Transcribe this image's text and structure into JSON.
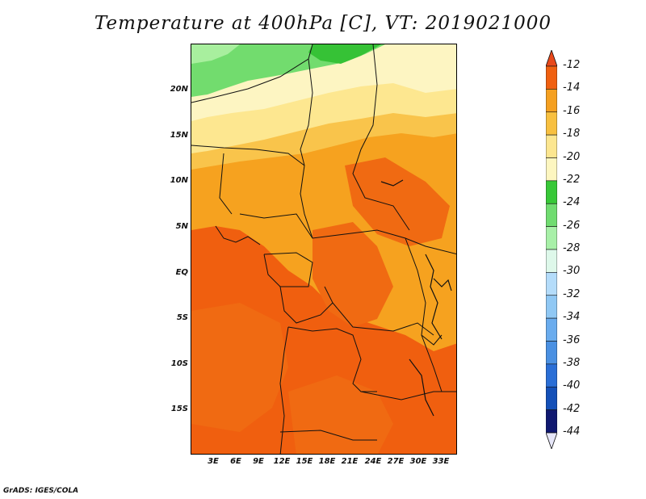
{
  "title": "Temperature at 400hPa [C], VT: 2019021000",
  "credit": "GrADS: IGES/COLA",
  "y_axis": {
    "labels": [
      "20N",
      "15N",
      "10N",
      "5N",
      "EQ",
      "5S",
      "10S",
      "15S"
    ]
  },
  "x_axis": {
    "labels": [
      "3E",
      "6E",
      "9E",
      "12E",
      "15E",
      "18E",
      "21E",
      "24E",
      "27E",
      "30E",
      "33E"
    ]
  },
  "colorbar": {
    "labels": [
      "-12",
      "-14",
      "-16",
      "-18",
      "-20",
      "-22",
      "-24",
      "-26",
      "-28",
      "-30",
      "-32",
      "-34",
      "-36",
      "-38",
      "-40",
      "-42",
      "-44"
    ],
    "colors": [
      "#e8481a",
      "#f06010",
      "#f5a020",
      "#f8c040",
      "#fce690",
      "#fdf6c0",
      "#38c838",
      "#70dc70",
      "#a8f0a8",
      "#def8ea",
      "#b4dcfa",
      "#90c8f4",
      "#6aacee",
      "#4a90e2",
      "#2a6ed6",
      "#1450b8",
      "#101870",
      "#e6e6f8"
    ]
  }
}
